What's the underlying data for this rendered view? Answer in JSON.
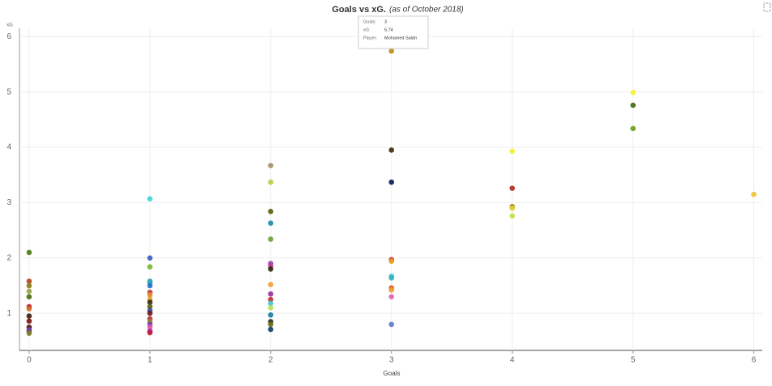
{
  "chart_data": {
    "type": "scatter",
    "title": "Goals vs xG.",
    "subtitle": "(as of October 2018)",
    "x_label": "Goals",
    "y_label": "xG",
    "xlim": [
      -0.08,
      6.07
    ],
    "ylim": [
      0.33,
      6.15
    ],
    "xticks": [
      0,
      1,
      2,
      3,
      4,
      5,
      6
    ],
    "yticks": [
      1,
      2,
      3,
      4,
      5,
      6
    ],
    "grid": true,
    "x": [
      0,
      0,
      0,
      0,
      0,
      0,
      0,
      0,
      0,
      0,
      0,
      0,
      0,
      1,
      1,
      1,
      1,
      1,
      1,
      1,
      1,
      1,
      1,
      1,
      1,
      1,
      1,
      1,
      1,
      1,
      1,
      1,
      2,
      2,
      2,
      2,
      2,
      2,
      2,
      2,
      2,
      2,
      2,
      2,
      2,
      2,
      2,
      2,
      2,
      3,
      3,
      3,
      3,
      3,
      3,
      3,
      3,
      3,
      3,
      3,
      4,
      4,
      4,
      4,
      4,
      5,
      5,
      5,
      6
    ],
    "values": [
      2.1,
      1.58,
      1.5,
      1.4,
      1.3,
      1.12,
      1.08,
      0.95,
      0.86,
      0.75,
      0.7,
      0.68,
      0.64,
      3.07,
      2.0,
      1.84,
      1.58,
      1.55,
      1.5,
      1.38,
      1.33,
      1.25,
      1.2,
      1.12,
      1.05,
      1.0,
      0.9,
      0.85,
      0.8,
      0.75,
      0.68,
      0.65,
      3.67,
      3.37,
      2.84,
      2.63,
      2.34,
      1.9,
      1.85,
      1.8,
      1.52,
      1.35,
      1.25,
      1.18,
      1.1,
      0.97,
      0.85,
      0.8,
      0.71,
      5.74,
      3.95,
      3.37,
      1.97,
      1.94,
      1.67,
      1.64,
      1.46,
      1.42,
      1.3,
      0.8,
      3.93,
      3.26,
      2.93,
      2.9,
      2.76,
      4.99,
      4.76,
      4.34,
      3.15
    ],
    "colors": [
      "#4a7a10",
      "#b5421a",
      "#8a7a10",
      "#9aa040",
      "#4a6a10",
      "#c02020",
      "#d0702a",
      "#3a1a0a",
      "#7a1010",
      "#5a0a0a",
      "#3a5ab0",
      "#8a3a9a",
      "#7a7a20",
      "#3cd4d4",
      "#3a5ac0",
      "#7ab030",
      "#2aa0b0",
      "#30a8c0",
      "#2a6ad0",
      "#c03a2a",
      "#e08a30",
      "#e0a030",
      "#3a2a0a",
      "#5a5a10",
      "#3a4aa0",
      "#6a1a1a",
      "#c02a2a",
      "#8a8a30",
      "#7a3ab0",
      "#e05aa0",
      "#b02ab0",
      "#c01a3a",
      "#a09060",
      "#b0d040",
      "#5a5a0a",
      "#1a8aa0",
      "#6aa030",
      "#9a3ab0",
      "#c03aa0",
      "#2a2a0a",
      "#f0a030",
      "#9a2a9a",
      "#c03030",
      "#40c0d0",
      "#b0e050",
      "#1a7aa0",
      "#2a2a1a",
      "#6a6a10",
      "#0a3a6a",
      "#c08a10",
      "#3a2a0a",
      "#0a1a5a",
      "#d03a2a",
      "#f0a020",
      "#40c0d0",
      "#30b0c0",
      "#e05a20",
      "#f0a030",
      "#e060b0",
      "#5a7ad0",
      "#f0f030",
      "#b02a1a",
      "#9a8a20",
      "#e0d030",
      "#c0e040",
      "#f8f030",
      "#3a6a0a",
      "#6a9a1a",
      "#f0c030"
    ],
    "tooltip": {
      "labels": [
        "Goals:",
        "xG:",
        "Player:"
      ],
      "values": [
        "3",
        "5.74",
        "Mohamed Salah"
      ]
    }
  }
}
